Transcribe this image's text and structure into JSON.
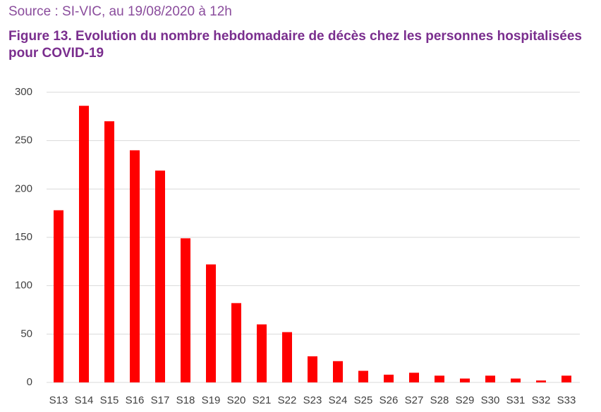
{
  "chart_data": {
    "type": "bar",
    "source": "Source : SI-VIC, au 19/08/2020 à 12h",
    "title": "Figure 13. Evolution du nombre hebdomadaire de décès chez les personnes hospitalisées pour COVID-19",
    "categories": [
      "S13",
      "S14",
      "S15",
      "S16",
      "S17",
      "S18",
      "S19",
      "S20",
      "S21",
      "S22",
      "S23",
      "S24",
      "S25",
      "S26",
      "S27",
      "S28",
      "S29",
      "S30",
      "S31",
      "S32",
      "S33"
    ],
    "values": [
      178,
      286,
      270,
      240,
      219,
      149,
      122,
      82,
      60,
      52,
      27,
      22,
      12,
      8,
      10,
      7,
      4,
      7,
      4,
      2,
      7
    ],
    "color": "#ff0000",
    "ylim": [
      0,
      300
    ],
    "yticks": [
      0,
      50,
      100,
      150,
      200,
      250,
      300
    ],
    "grid": true
  }
}
